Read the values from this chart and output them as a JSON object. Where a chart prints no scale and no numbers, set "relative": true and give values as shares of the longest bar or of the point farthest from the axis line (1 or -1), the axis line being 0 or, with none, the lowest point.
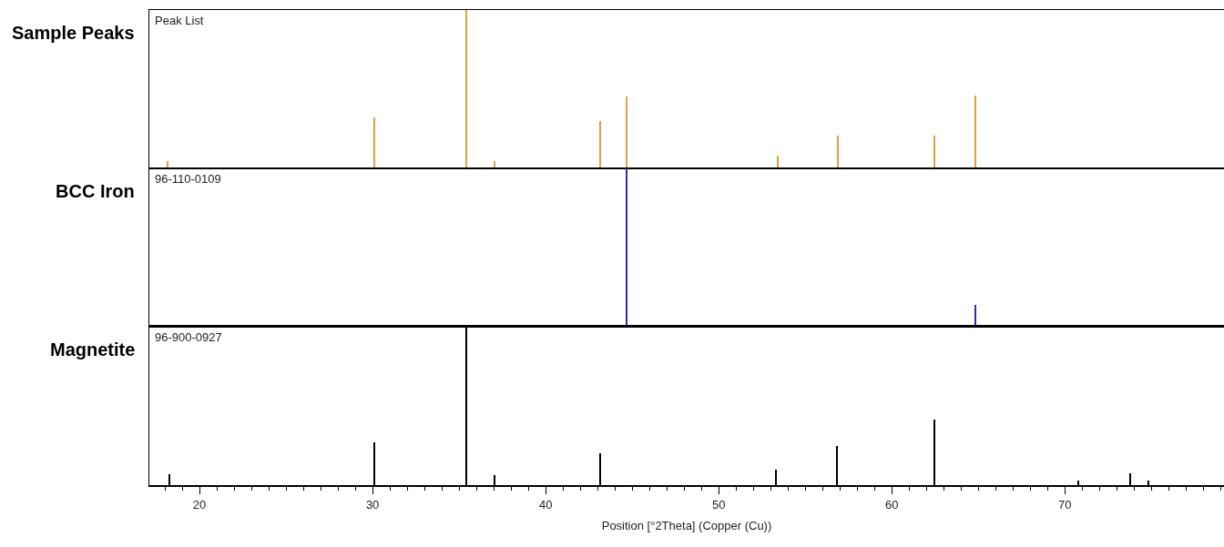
{
  "chart_data": [
    {
      "type": "bar",
      "ylabel": "Sample Peaks",
      "annotations": [
        "Peak List"
      ],
      "relative": true,
      "xlim": [
        17.1,
        79.2
      ],
      "tick_labels": false,
      "series": [
        {
          "color": "#e0a040",
          "x": [
            18.17,
            30.1,
            35.44,
            37.06,
            43.16,
            44.69,
            53.4,
            56.9,
            62.45,
            64.82
          ],
          "values": [
            0.047,
            0.32,
            1,
            0.047,
            0.3,
            0.455,
            0.078,
            0.206,
            0.206,
            0.46
          ]
        }
      ]
    },
    {
      "type": "bar",
      "ylabel": "BCC Iron",
      "annotations": [
        "96-110-0109"
      ],
      "relative": true,
      "xlim": [
        17.1,
        79.2
      ],
      "tick_labels": false,
      "series": [
        {
          "color": "#2e2e9e",
          "x": [
            44.69,
            64.85
          ],
          "values": [
            1,
            0.14
          ]
        }
      ]
    },
    {
      "type": "bar",
      "ylabel": "Magnetite",
      "annotations": [
        "96-900-0927"
      ],
      "relative": true,
      "xlim": [
        17.1,
        79.2
      ],
      "tick_labels": "x",
      "xlabel": "Position [°2Theta] (Copper (Cu))",
      "xticks": [
        {
          "value": 18,
          "label": null
        },
        {
          "value": 19,
          "label": null
        },
        20,
        {
          "value": 21,
          "label": null
        },
        {
          "value": 22,
          "label": null
        },
        {
          "value": 23,
          "label": null
        },
        {
          "value": 24,
          "label": null
        },
        {
          "value": 25,
          "label": null
        },
        {
          "value": 26,
          "label": null
        },
        {
          "value": 27,
          "label": null
        },
        {
          "value": 28,
          "label": null
        },
        {
          "value": 29,
          "label": null
        },
        30,
        {
          "value": 31,
          "label": null
        },
        {
          "value": 32,
          "label": null
        },
        {
          "value": 33,
          "label": null
        },
        {
          "value": 34,
          "label": null
        },
        {
          "value": 35,
          "label": null
        },
        {
          "value": 36,
          "label": null
        },
        {
          "value": 37,
          "label": null
        },
        {
          "value": 38,
          "label": null
        },
        {
          "value": 39,
          "label": null
        },
        40,
        {
          "value": 41,
          "label": null
        },
        {
          "value": 42,
          "label": null
        },
        {
          "value": 43,
          "label": null
        },
        {
          "value": 44,
          "label": null
        },
        {
          "value": 45,
          "label": null
        },
        {
          "value": 46,
          "label": null
        },
        {
          "value": 47,
          "label": null
        },
        {
          "value": 48,
          "label": null
        },
        {
          "value": 49,
          "label": null
        },
        50,
        {
          "value": 51,
          "label": null
        },
        {
          "value": 52,
          "label": null
        },
        {
          "value": 53,
          "label": null
        },
        {
          "value": 54,
          "label": null
        },
        {
          "value": 55,
          "label": null
        },
        {
          "value": 56,
          "label": null
        },
        {
          "value": 57,
          "label": null
        },
        {
          "value": 58,
          "label": null
        },
        {
          "value": 59,
          "label": null
        },
        60,
        {
          "value": 61,
          "label": null
        },
        {
          "value": 62,
          "label": null
        },
        {
          "value": 63,
          "label": null
        },
        {
          "value": 64,
          "label": null
        },
        {
          "value": 65,
          "label": null
        },
        {
          "value": 66,
          "label": null
        },
        {
          "value": 67,
          "label": null
        },
        {
          "value": 68,
          "label": null
        },
        {
          "value": 69,
          "label": null
        },
        70,
        {
          "value": 71,
          "label": null
        },
        {
          "value": 72,
          "label": null
        },
        {
          "value": 73,
          "label": null
        },
        {
          "value": 74,
          "label": null
        },
        {
          "value": 75,
          "label": null
        },
        {
          "value": 76,
          "label": null
        },
        {
          "value": 77,
          "label": null
        },
        {
          "value": 78,
          "label": null
        },
        {
          "value": 79,
          "label": null
        }
      ],
      "series": [
        {
          "color": "#000000",
          "x": [
            18.24,
            30.1,
            35.44,
            37.06,
            43.16,
            53.32,
            56.84,
            62.45,
            70.8,
            73.8,
            74.86
          ],
          "values": [
            0.07,
            0.27,
            1,
            0.066,
            0.2,
            0.095,
            0.25,
            0.415,
            0.03,
            0.077,
            0.03
          ]
        }
      ]
    }
  ]
}
